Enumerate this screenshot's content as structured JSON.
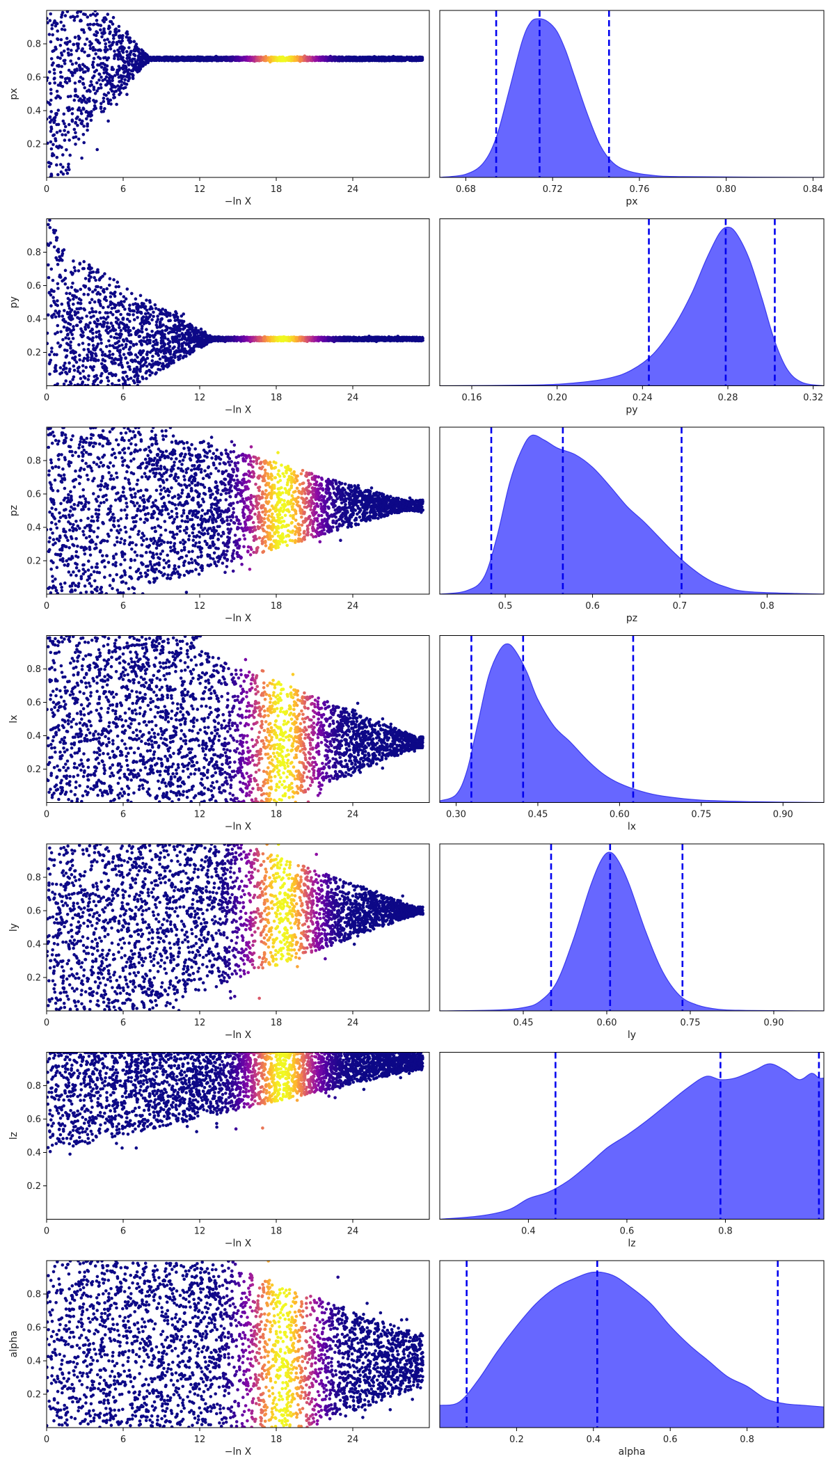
{
  "chart_data": [
    {
      "type": "scatter",
      "param": "px",
      "xlabel": "−ln X",
      "ylabel": "px",
      "xlim": [
        0,
        30
      ],
      "ylim": [
        0,
        1
      ],
      "xticks": [
        0,
        6,
        12,
        18,
        24
      ],
      "xtick_labels": [
        "0",
        "6",
        "12",
        "18",
        "24"
      ],
      "yticks": [
        0.2,
        0.4,
        0.6,
        0.8
      ],
      "ytick_labels": [
        "0.2",
        "0.4",
        "0.6",
        "0.8"
      ],
      "colormap": "plasma",
      "converge_center": 0.71,
      "converge_start": 2,
      "converge_end": 8,
      "color_peak_x": 18.5,
      "max_x": 29.5,
      "final_width": 0.01,
      "point_count": 3200
    },
    {
      "type": "area",
      "param": "px",
      "xlabel": "px",
      "xlim": [
        0.668,
        0.845
      ],
      "xticks": [
        0.68,
        0.72,
        0.76,
        0.8,
        0.84
      ],
      "xtick_labels": [
        "0.68",
        "0.72",
        "0.76",
        "0.80",
        "0.84"
      ],
      "kde_x": [
        0.668,
        0.68,
        0.688,
        0.694,
        0.7,
        0.706,
        0.71,
        0.714,
        0.718,
        0.722,
        0.726,
        0.73,
        0.736,
        0.742,
        0.748,
        0.755,
        0.765,
        0.78,
        0.845
      ],
      "kde_y": [
        0.0,
        0.02,
        0.09,
        0.25,
        0.55,
        0.86,
        0.98,
        1.0,
        0.98,
        0.92,
        0.8,
        0.64,
        0.4,
        0.2,
        0.09,
        0.04,
        0.015,
        0.005,
        0.0
      ],
      "quantiles": [
        0.694,
        0.714,
        0.746
      ]
    },
    {
      "type": "scatter",
      "param": "py",
      "xlabel": "−ln X",
      "ylabel": "py",
      "xlim": [
        0,
        30
      ],
      "ylim": [
        0,
        1
      ],
      "xticks": [
        0,
        6,
        12,
        18,
        24
      ],
      "xtick_labels": [
        "0",
        "6",
        "12",
        "18",
        "24"
      ],
      "yticks": [
        0.2,
        0.4,
        0.6,
        0.8
      ],
      "ytick_labels": [
        "0.2",
        "0.4",
        "0.6",
        "0.8"
      ],
      "colormap": "plasma",
      "converge_center": 0.28,
      "converge_start": 1,
      "converge_end": 13,
      "color_peak_x": 18.5,
      "max_x": 29.5,
      "final_width": 0.01,
      "point_count": 3200
    },
    {
      "type": "area",
      "param": "py",
      "xlabel": "py",
      "xlim": [
        0.145,
        0.325
      ],
      "xticks": [
        0.16,
        0.2,
        0.24,
        0.28,
        0.32
      ],
      "xtick_labels": [
        "0.16",
        "0.20",
        "0.24",
        "0.28",
        "0.32"
      ],
      "kde_x": [
        0.145,
        0.19,
        0.21,
        0.225,
        0.235,
        0.245,
        0.255,
        0.263,
        0.27,
        0.276,
        0.28,
        0.284,
        0.29,
        0.296,
        0.302,
        0.308,
        0.315,
        0.325
      ],
      "kde_y": [
        0.0,
        0.005,
        0.02,
        0.05,
        0.1,
        0.2,
        0.38,
        0.58,
        0.8,
        0.96,
        1.0,
        0.96,
        0.8,
        0.55,
        0.28,
        0.1,
        0.02,
        0.0
      ],
      "quantiles": [
        0.243,
        0.279,
        0.302
      ]
    },
    {
      "type": "scatter",
      "param": "pz",
      "xlabel": "−ln X",
      "ylabel": "pz",
      "xlim": [
        0,
        30
      ],
      "ylim": [
        0,
        1
      ],
      "xticks": [
        0,
        6,
        12,
        18,
        24
      ],
      "xtick_labels": [
        "0",
        "6",
        "12",
        "18",
        "24"
      ],
      "yticks": [
        0.2,
        0.4,
        0.6,
        0.8
      ],
      "ytick_labels": [
        "0.2",
        "0.4",
        "0.6",
        "0.8"
      ],
      "colormap": "plasma",
      "converge_center": 0.53,
      "converge_start": 5,
      "converge_end": 28,
      "color_peak_x": 18.5,
      "max_x": 29.5,
      "final_width": 0.03,
      "point_count": 3200
    },
    {
      "type": "area",
      "param": "pz",
      "xlabel": "pz",
      "xlim": [
        0.425,
        0.865
      ],
      "xticks": [
        0.5,
        0.6,
        0.7,
        0.8
      ],
      "xtick_labels": [
        "0.5",
        "0.6",
        "0.7",
        "0.8"
      ],
      "kde_x": [
        0.425,
        0.455,
        0.475,
        0.49,
        0.505,
        0.518,
        0.53,
        0.545,
        0.56,
        0.58,
        0.6,
        0.62,
        0.64,
        0.66,
        0.69,
        0.71,
        0.73,
        0.75,
        0.78,
        0.865
      ],
      "kde_y": [
        0.0,
        0.02,
        0.1,
        0.35,
        0.7,
        0.9,
        1.0,
        0.97,
        0.92,
        0.88,
        0.8,
        0.68,
        0.55,
        0.45,
        0.28,
        0.18,
        0.1,
        0.05,
        0.015,
        0.0
      ],
      "quantiles": [
        0.484,
        0.566,
        0.702
      ]
    },
    {
      "type": "scatter",
      "param": "lx",
      "xlabel": "−ln X",
      "ylabel": "lx",
      "xlim": [
        0,
        30
      ],
      "ylim": [
        0,
        1
      ],
      "xticks": [
        0,
        6,
        12,
        18,
        24
      ],
      "xtick_labels": [
        "0",
        "6",
        "12",
        "18",
        "24"
      ],
      "yticks": [
        0.2,
        0.4,
        0.6,
        0.8
      ],
      "ytick_labels": [
        "0.2",
        "0.4",
        "0.6",
        "0.8"
      ],
      "colormap": "plasma",
      "converge_center": 0.36,
      "converge_start": 12,
      "converge_end": 29,
      "color_peak_x": 18.5,
      "max_x": 29.5,
      "final_width": 0.03,
      "point_count": 3200
    },
    {
      "type": "area",
      "param": "lx",
      "xlabel": "lx",
      "xlim": [
        0.27,
        0.975
      ],
      "xticks": [
        0.3,
        0.45,
        0.6,
        0.75,
        0.9
      ],
      "xtick_labels": [
        "0.30",
        "0.45",
        "0.60",
        "0.75",
        "0.90"
      ],
      "kde_x": [
        0.27,
        0.3,
        0.32,
        0.34,
        0.36,
        0.38,
        0.395,
        0.41,
        0.43,
        0.45,
        0.48,
        0.51,
        0.54,
        0.57,
        0.6,
        0.64,
        0.68,
        0.75,
        0.85,
        0.975
      ],
      "kde_y": [
        0.01,
        0.05,
        0.2,
        0.5,
        0.8,
        0.96,
        1.0,
        0.95,
        0.82,
        0.65,
        0.48,
        0.38,
        0.27,
        0.18,
        0.12,
        0.07,
        0.04,
        0.015,
        0.005,
        0.0
      ],
      "quantiles": [
        0.328,
        0.423,
        0.625
      ]
    },
    {
      "type": "scatter",
      "param": "ly",
      "xlabel": "−ln X",
      "ylabel": "ly",
      "xlim": [
        0,
        30
      ],
      "ylim": [
        0,
        1
      ],
      "xticks": [
        0,
        6,
        12,
        18,
        24
      ],
      "xtick_labels": [
        "0",
        "6",
        "12",
        "18",
        "24"
      ],
      "yticks": [
        0.2,
        0.4,
        0.6,
        0.8
      ],
      "ytick_labels": [
        "0.2",
        "0.4",
        "0.6",
        "0.8"
      ],
      "colormap": "plasma",
      "converge_center": 0.6,
      "converge_start": 10,
      "converge_end": 29,
      "color_peak_x": 18.5,
      "max_x": 29.5,
      "final_width": 0.02,
      "point_count": 3200
    },
    {
      "type": "area",
      "param": "ly",
      "xlabel": "ly",
      "xlim": [
        0.3,
        0.99
      ],
      "xticks": [
        0.45,
        0.6,
        0.75,
        0.9
      ],
      "xtick_labels": [
        "0.45",
        "0.60",
        "0.75",
        "0.90"
      ],
      "kde_x": [
        0.3,
        0.4,
        0.45,
        0.48,
        0.51,
        0.54,
        0.57,
        0.59,
        0.605,
        0.62,
        0.64,
        0.67,
        0.7,
        0.73,
        0.76,
        0.8,
        0.85,
        0.99
      ],
      "kde_y": [
        0.0,
        0.005,
        0.02,
        0.06,
        0.18,
        0.45,
        0.78,
        0.95,
        1.0,
        0.95,
        0.8,
        0.5,
        0.25,
        0.1,
        0.04,
        0.01,
        0.003,
        0.0
      ],
      "quantiles": [
        0.5,
        0.606,
        0.736
      ]
    },
    {
      "type": "scatter",
      "param": "lz",
      "xlabel": "−ln X",
      "ylabel": "lz",
      "xlim": [
        0,
        30
      ],
      "ylim": [
        0,
        1
      ],
      "xticks": [
        0,
        6,
        12,
        18,
        24
      ],
      "xtick_labels": [
        "0",
        "6",
        "12",
        "18",
        "24"
      ],
      "yticks": [
        0.2,
        0.4,
        0.6,
        0.8
      ],
      "ytick_labels": [
        "0.2",
        "0.4",
        "0.6",
        "0.8"
      ],
      "colormap": "plasma",
      "converge_center": 0.95,
      "converge_start": 0,
      "converge_end": 29,
      "color_peak_x": 18.5,
      "max_x": 29.5,
      "final_width": 0.05,
      "point_count": 3200
    },
    {
      "type": "area",
      "param": "lz",
      "xlabel": "lz",
      "xlim": [
        0.22,
        1.0
      ],
      "xticks": [
        0.4,
        0.6,
        0.8
      ],
      "xtick_labels": [
        "0.4",
        "0.6",
        "0.8"
      ],
      "kde_x": [
        0.22,
        0.3,
        0.36,
        0.4,
        0.44,
        0.48,
        0.52,
        0.56,
        0.6,
        0.64,
        0.68,
        0.72,
        0.76,
        0.79,
        0.82,
        0.86,
        0.89,
        0.92,
        0.95,
        0.975,
        0.99,
        1.0
      ],
      "kde_y": [
        0.0,
        0.02,
        0.06,
        0.13,
        0.17,
        0.24,
        0.34,
        0.45,
        0.53,
        0.62,
        0.72,
        0.82,
        0.9,
        0.88,
        0.89,
        0.94,
        0.98,
        0.94,
        0.88,
        0.92,
        0.89,
        0.89
      ],
      "quantiles": [
        0.455,
        0.79,
        0.99
      ]
    },
    {
      "type": "scatter",
      "param": "alpha",
      "xlabel": "−ln X",
      "ylabel": "alpha",
      "xlim": [
        0,
        30
      ],
      "ylim": [
        0,
        1
      ],
      "xticks": [
        0,
        6,
        12,
        18,
        24
      ],
      "xtick_labels": [
        "0",
        "6",
        "12",
        "18",
        "24"
      ],
      "yticks": [
        0.2,
        0.4,
        0.6,
        0.8
      ],
      "ytick_labels": [
        "0.2",
        "0.4",
        "0.6",
        "0.8"
      ],
      "colormap": "plasma",
      "converge_center": 0.4,
      "converge_start": 15,
      "converge_end": 29,
      "color_peak_x": 18.5,
      "max_x": 29.5,
      "final_width": 0.15,
      "point_count": 3200
    },
    {
      "type": "area",
      "param": "alpha",
      "xlabel": "alpha",
      "xlim": [
        0.0,
        1.0
      ],
      "xticks": [
        0.2,
        0.4,
        0.6,
        0.8
      ],
      "xtick_labels": [
        "0.2",
        "0.4",
        "0.6",
        "0.8"
      ],
      "kde_x": [
        0.0,
        0.05,
        0.1,
        0.15,
        0.2,
        0.25,
        0.3,
        0.35,
        0.4,
        0.45,
        0.5,
        0.55,
        0.6,
        0.65,
        0.7,
        0.75,
        0.8,
        0.85,
        0.9,
        0.95,
        1.0
      ],
      "kde_y": [
        0.14,
        0.16,
        0.3,
        0.48,
        0.64,
        0.78,
        0.88,
        0.94,
        0.98,
        0.96,
        0.88,
        0.78,
        0.64,
        0.52,
        0.42,
        0.32,
        0.26,
        0.18,
        0.15,
        0.14,
        0.13
      ],
      "quantiles": [
        0.07,
        0.41,
        0.88
      ]
    }
  ]
}
